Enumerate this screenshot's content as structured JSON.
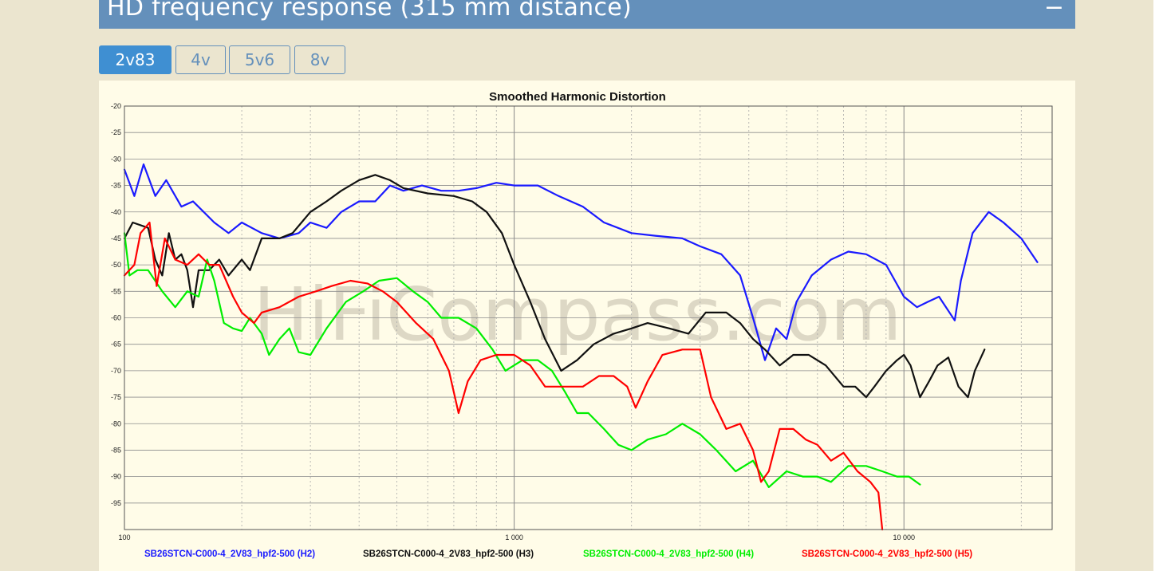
{
  "panel": {
    "title": "HD frequency response (315 mm distance)",
    "collapse_symbol": "−"
  },
  "tabs": [
    {
      "label": "2v83",
      "active": true
    },
    {
      "label": "4v",
      "active": false
    },
    {
      "label": "5v6",
      "active": false
    },
    {
      "label": "8v",
      "active": false
    }
  ],
  "watermark": "HiFiCompass.com",
  "chart_data": {
    "type": "line",
    "title": "Smoothed Harmonic Distortion",
    "xscale": "log",
    "xlim": [
      100,
      24000
    ],
    "ylim": [
      -100,
      -20
    ],
    "grid": true,
    "legend_position": "bottom",
    "x_tick_labels": [
      "100",
      "1 000",
      "10 000"
    ],
    "y_tick_labels": [
      "-20",
      "-25",
      "-30",
      "-35",
      "-40",
      "-45",
      "-50",
      "-55",
      "-60",
      "-65",
      "-70",
      "-75",
      "-80",
      "-85",
      "-90",
      "-95"
    ],
    "series": [
      {
        "name": "SB26STCN-C000-4_2V83_hpf2-500 (H2)",
        "color": "#1a1aff",
        "points": [
          [
            100,
            -32
          ],
          [
            106,
            -37
          ],
          [
            112,
            -31
          ],
          [
            120,
            -37
          ],
          [
            128,
            -34
          ],
          [
            140,
            -39
          ],
          [
            150,
            -38
          ],
          [
            170,
            -42
          ],
          [
            185,
            -44
          ],
          [
            200,
            -42
          ],
          [
            225,
            -44
          ],
          [
            250,
            -45
          ],
          [
            280,
            -44
          ],
          [
            300,
            -42
          ],
          [
            330,
            -43
          ],
          [
            360,
            -40
          ],
          [
            400,
            -38
          ],
          [
            440,
            -38
          ],
          [
            480,
            -35
          ],
          [
            520,
            -36
          ],
          [
            580,
            -35
          ],
          [
            650,
            -36
          ],
          [
            720,
            -36
          ],
          [
            800,
            -35.5
          ],
          [
            900,
            -34.5
          ],
          [
            1000,
            -35
          ],
          [
            1150,
            -35
          ],
          [
            1300,
            -37
          ],
          [
            1500,
            -39
          ],
          [
            1700,
            -42
          ],
          [
            2000,
            -44
          ],
          [
            2300,
            -44.5
          ],
          [
            2700,
            -45
          ],
          [
            3000,
            -46.5
          ],
          [
            3400,
            -48
          ],
          [
            3800,
            -52
          ],
          [
            4100,
            -60
          ],
          [
            4400,
            -68
          ],
          [
            4700,
            -62
          ],
          [
            5000,
            -64
          ],
          [
            5300,
            -57
          ],
          [
            5800,
            -52
          ],
          [
            6500,
            -49
          ],
          [
            7200,
            -47.5
          ],
          [
            8000,
            -48
          ],
          [
            9000,
            -50
          ],
          [
            10000,
            -56
          ],
          [
            10800,
            -58
          ],
          [
            11500,
            -57
          ],
          [
            12300,
            -56
          ],
          [
            13500,
            -60.5
          ],
          [
            14000,
            -53
          ],
          [
            15000,
            -44
          ],
          [
            16500,
            -40
          ],
          [
            18000,
            -42
          ],
          [
            20000,
            -45
          ],
          [
            22000,
            -49.5
          ]
        ]
      },
      {
        "name": "SB26STCN-C000-4_2V83_hpf2-500 (H3)",
        "color": "#111111",
        "points": [
          [
            100,
            -45
          ],
          [
            105,
            -42
          ],
          [
            115,
            -43
          ],
          [
            120,
            -49
          ],
          [
            125,
            -52
          ],
          [
            130,
            -44
          ],
          [
            135,
            -49
          ],
          [
            140,
            -48
          ],
          [
            145,
            -51
          ],
          [
            150,
            -58
          ],
          [
            155,
            -51
          ],
          [
            165,
            -51
          ],
          [
            175,
            -49
          ],
          [
            185,
            -52
          ],
          [
            200,
            -49
          ],
          [
            210,
            -51
          ],
          [
            225,
            -45
          ],
          [
            250,
            -45
          ],
          [
            270,
            -44
          ],
          [
            300,
            -40
          ],
          [
            330,
            -38
          ],
          [
            360,
            -36
          ],
          [
            400,
            -34
          ],
          [
            440,
            -33
          ],
          [
            480,
            -34
          ],
          [
            520,
            -35.5
          ],
          [
            600,
            -36.5
          ],
          [
            700,
            -37
          ],
          [
            780,
            -38
          ],
          [
            850,
            -40
          ],
          [
            930,
            -44
          ],
          [
            1000,
            -50
          ],
          [
            1100,
            -57
          ],
          [
            1200,
            -64
          ],
          [
            1320,
            -70
          ],
          [
            1450,
            -68
          ],
          [
            1600,
            -65
          ],
          [
            1800,
            -63
          ],
          [
            2000,
            -62
          ],
          [
            2200,
            -61
          ],
          [
            2500,
            -62
          ],
          [
            2800,
            -63
          ],
          [
            3100,
            -59
          ],
          [
            3500,
            -59
          ],
          [
            3800,
            -61
          ],
          [
            4100,
            -64
          ],
          [
            4400,
            -66
          ],
          [
            4800,
            -69
          ],
          [
            5200,
            -67
          ],
          [
            5700,
            -67
          ],
          [
            6300,
            -69
          ],
          [
            7000,
            -73
          ],
          [
            7500,
            -73
          ],
          [
            8000,
            -75
          ],
          [
            8400,
            -73
          ],
          [
            9000,
            -70
          ],
          [
            9600,
            -68
          ],
          [
            10000,
            -67
          ],
          [
            10400,
            -69
          ],
          [
            11000,
            -75
          ],
          [
            11600,
            -72
          ],
          [
            12200,
            -69
          ],
          [
            13000,
            -67.5
          ],
          [
            13800,
            -73
          ],
          [
            14600,
            -75
          ],
          [
            15200,
            -70
          ],
          [
            16100,
            -66
          ]
        ]
      },
      {
        "name": "SB26STCN-C000-4_2V83_hpf2-500 (H4)",
        "color": "#00ee00",
        "points": [
          [
            100,
            -44
          ],
          [
            103,
            -52
          ],
          [
            108,
            -51
          ],
          [
            115,
            -51
          ],
          [
            125,
            -55
          ],
          [
            135,
            -58
          ],
          [
            145,
            -55
          ],
          [
            155,
            -56
          ],
          [
            163,
            -49
          ],
          [
            170,
            -53
          ],
          [
            180,
            -61
          ],
          [
            190,
            -62
          ],
          [
            200,
            -62.5
          ],
          [
            210,
            -60
          ],
          [
            225,
            -63
          ],
          [
            235,
            -67
          ],
          [
            250,
            -64
          ],
          [
            265,
            -62
          ],
          [
            280,
            -66.5
          ],
          [
            300,
            -67
          ],
          [
            330,
            -62
          ],
          [
            370,
            -57
          ],
          [
            410,
            -55
          ],
          [
            450,
            -53
          ],
          [
            500,
            -52.5
          ],
          [
            550,
            -55
          ],
          [
            600,
            -57
          ],
          [
            650,
            -60
          ],
          [
            720,
            -60
          ],
          [
            800,
            -62
          ],
          [
            880,
            -66
          ],
          [
            950,
            -70
          ],
          [
            1050,
            -68
          ],
          [
            1150,
            -68
          ],
          [
            1250,
            -70
          ],
          [
            1350,
            -74
          ],
          [
            1450,
            -78
          ],
          [
            1550,
            -78
          ],
          [
            1700,
            -81
          ],
          [
            1850,
            -84
          ],
          [
            2000,
            -85
          ],
          [
            2200,
            -83
          ],
          [
            2450,
            -82
          ],
          [
            2700,
            -80
          ],
          [
            3000,
            -82
          ],
          [
            3300,
            -85
          ],
          [
            3700,
            -89
          ],
          [
            4100,
            -87
          ],
          [
            4500,
            -92
          ],
          [
            5000,
            -89
          ],
          [
            5500,
            -90
          ],
          [
            6000,
            -90
          ],
          [
            6500,
            -91
          ],
          [
            7200,
            -88
          ],
          [
            8000,
            -88
          ],
          [
            8800,
            -89
          ],
          [
            9600,
            -90
          ],
          [
            10300,
            -90
          ],
          [
            11000,
            -91.5
          ]
        ]
      },
      {
        "name": "SB26STCN-C000-4_2V83_hpf2-500 (H5)",
        "color": "#ff0000",
        "points": [
          [
            100,
            -52
          ],
          [
            106,
            -50
          ],
          [
            110,
            -44
          ],
          [
            116,
            -42
          ],
          [
            121,
            -54
          ],
          [
            127,
            -45
          ],
          [
            135,
            -49
          ],
          [
            145,
            -50
          ],
          [
            155,
            -48
          ],
          [
            165,
            -50
          ],
          [
            175,
            -50
          ],
          [
            190,
            -56
          ],
          [
            200,
            -59
          ],
          [
            215,
            -61
          ],
          [
            225,
            -59
          ],
          [
            250,
            -58
          ],
          [
            280,
            -56
          ],
          [
            310,
            -55
          ],
          [
            340,
            -54
          ],
          [
            380,
            -53
          ],
          [
            420,
            -53.5
          ],
          [
            460,
            -55
          ],
          [
            500,
            -57
          ],
          [
            560,
            -61
          ],
          [
            620,
            -64
          ],
          [
            680,
            -70
          ],
          [
            720,
            -78
          ],
          [
            760,
            -72
          ],
          [
            820,
            -68
          ],
          [
            900,
            -67
          ],
          [
            1000,
            -67
          ],
          [
            1100,
            -69
          ],
          [
            1200,
            -73
          ],
          [
            1350,
            -73
          ],
          [
            1500,
            -73
          ],
          [
            1650,
            -71
          ],
          [
            1800,
            -71
          ],
          [
            1950,
            -73
          ],
          [
            2050,
            -77
          ],
          [
            2200,
            -72
          ],
          [
            2400,
            -67
          ],
          [
            2700,
            -66
          ],
          [
            3000,
            -66
          ],
          [
            3200,
            -75
          ],
          [
            3500,
            -81
          ],
          [
            3800,
            -80
          ],
          [
            4100,
            -85
          ],
          [
            4300,
            -91
          ],
          [
            4500,
            -89
          ],
          [
            4800,
            -81
          ],
          [
            5200,
            -81
          ],
          [
            5600,
            -83
          ],
          [
            6000,
            -84
          ],
          [
            6500,
            -87
          ],
          [
            7000,
            -85.5
          ],
          [
            7600,
            -89
          ],
          [
            8200,
            -91
          ],
          [
            8600,
            -93
          ],
          [
            8800,
            -100
          ]
        ]
      }
    ]
  }
}
